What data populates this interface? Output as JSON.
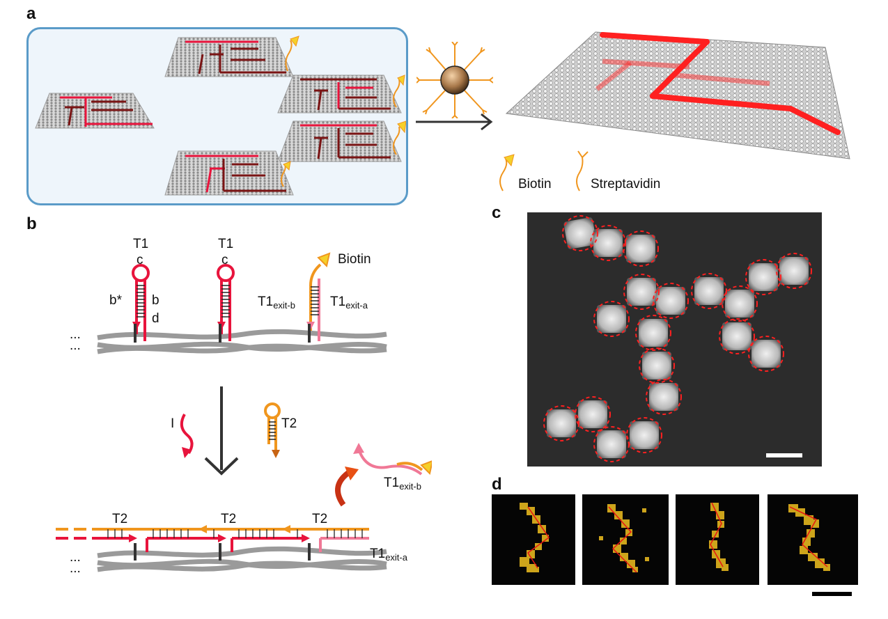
{
  "panels": {
    "a": {
      "label": "a",
      "legend": {
        "biotin": "Biotin",
        "streptavidin": "Streptavidin"
      }
    },
    "b": {
      "label": "b",
      "top": {
        "t1_first": "T1",
        "c_first": "c",
        "t1_second": "T1",
        "c_second": "c",
        "b_star": "b*",
        "b": "b",
        "d": "d",
        "biotin": "Biotin",
        "t1_exit_b": "T1",
        "t1_exit_b_sub": "exit-b",
        "t1_exit_a": "T1",
        "t1_exit_a_sub": "exit-a",
        "ellipsis": "..."
      },
      "middle": {
        "i_label": "I",
        "t2_label": "T2",
        "released": "T1",
        "released_sub": "exit-b"
      },
      "bottom": {
        "t2_1": "T2",
        "t2_2": "T2",
        "t2_3": "T2",
        "t1_exit_a": "T1",
        "t1_exit_a_sub": "exit-a",
        "ellipsis": "..."
      }
    },
    "c": {
      "label": "c"
    },
    "d": {
      "label": "d"
    }
  },
  "colors": {
    "red": "#e8143c",
    "dark_red": "#7a1414",
    "orange": "#f0961e",
    "pink": "#f07896",
    "blue_frame": "#5a9bc8",
    "light_blue": "#eef5fb"
  }
}
